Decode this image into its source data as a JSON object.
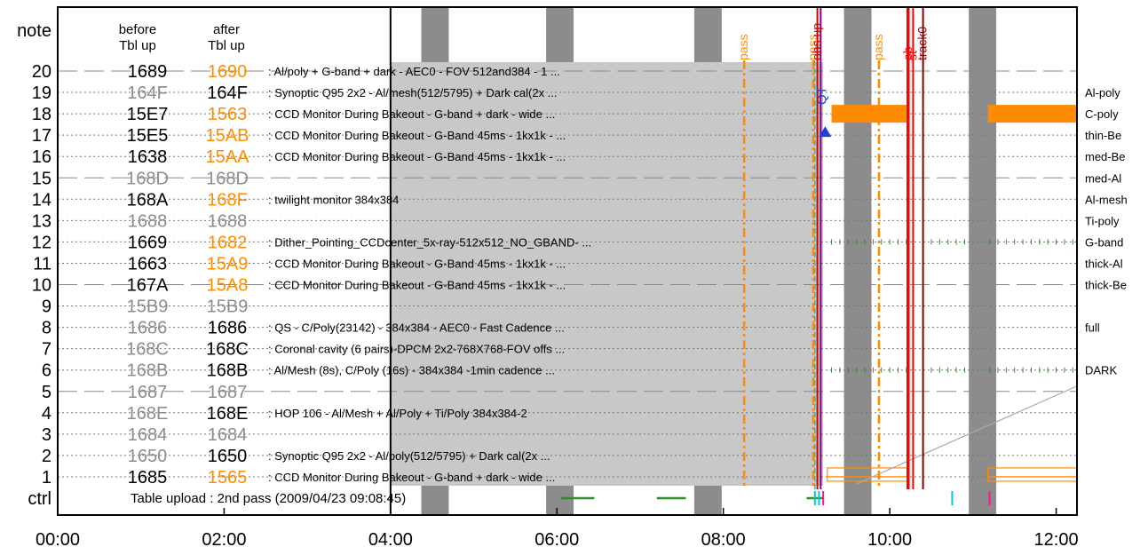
{
  "chart_data": {
    "type": "timeline",
    "x_ticks": [
      "00:00",
      "02:00",
      "04:00",
      "06:00",
      "08:00",
      "10:00",
      "12:00"
    ],
    "x_range_hours": [
      0,
      12.25
    ],
    "row_label_header": "note",
    "ctrl_label": "ctrl",
    "before_header": [
      "before",
      "Tbl up"
    ],
    "after_header": [
      "after",
      "Tbl up"
    ],
    "table_boundary_hour": 4.0,
    "rows": [
      {
        "num": "20",
        "before": "1689",
        "after": "1690",
        "before_style": "black",
        "after_style": "orange",
        "desc": "Al/poly + G-band + dark - AEC0 - FOV 512and384 - 1 ...",
        "line": "dashed",
        "right_label": ""
      },
      {
        "num": "19",
        "before": "164F",
        "after": "164F",
        "before_style": "gray",
        "after_style": "black",
        "desc": "Synoptic Q95 2x2 - Al/mesh(512/5795) + Dark cal(2x ...",
        "line": "dotted",
        "right_label": "Al-poly"
      },
      {
        "num": "18",
        "before": "15E7",
        "after": "1563",
        "before_style": "black",
        "after_style": "orange",
        "desc": "CCD Monitor During Bakeout - G-band + dark - wide ...",
        "line": "dotted",
        "right_label": "C-poly"
      },
      {
        "num": "17",
        "before": "15E5",
        "after": "15AB",
        "before_style": "black",
        "after_style": "orange",
        "desc": "CCD Monitor During Bakeout - G-Band 45ms - 1kx1k - ...",
        "line": "dotted",
        "right_label": "thin-Be"
      },
      {
        "num": "16",
        "before": "1638",
        "after": "15AA",
        "before_style": "black",
        "after_style": "orange",
        "desc": "CCD Monitor During Bakeout - G-Band 45ms - 1kx1k - ...",
        "line": "dotted",
        "right_label": "med-Be"
      },
      {
        "num": "15",
        "before": "168D",
        "after": "168D",
        "before_style": "gray",
        "after_style": "gray",
        "desc": "",
        "line": "dashed",
        "right_label": "med-Al"
      },
      {
        "num": "14",
        "before": "168A",
        "after": "168F",
        "before_style": "black",
        "after_style": "orange",
        "desc": "twilight monitor 384x384",
        "line": "dotted",
        "right_label": "Al-mesh"
      },
      {
        "num": "13",
        "before": "1688",
        "after": "1688",
        "before_style": "gray",
        "after_style": "gray",
        "desc": "",
        "line": "dotted",
        "right_label": "Ti-poly"
      },
      {
        "num": "12",
        "before": "1669",
        "after": "1682",
        "before_style": "black",
        "after_style": "orange",
        "desc": "Dither_Pointing_CCDcenter_5x-ray-512x512_NO_GBAND- ...",
        "line": "dotted",
        "right_label": "G-band"
      },
      {
        "num": "11",
        "before": "1663",
        "after": "15A9",
        "before_style": "black",
        "after_style": "orange",
        "desc": "CCD Monitor During Bakeout - G-Band 45ms - 1kx1k - ...",
        "line": "dotted",
        "right_label": "thick-Al"
      },
      {
        "num": "10",
        "before": "167A",
        "after": "15A8",
        "before_style": "black",
        "after_style": "orange",
        "desc": "CCD Monitor During Bakeout - G-Band 45ms - 1kx1k - ...",
        "line": "dashed",
        "right_label": "thick-Be"
      },
      {
        "num": "9",
        "before": "15B9",
        "after": "15B9",
        "before_style": "gray",
        "after_style": "gray",
        "desc": "",
        "line": "dotted",
        "right_label": ""
      },
      {
        "num": "8",
        "before": "1686",
        "after": "1686",
        "before_style": "gray",
        "after_style": "black",
        "desc": "QS - C/Poly(23142) - 384x384 - AEC0 - Fast Cadence ...",
        "line": "dotted",
        "right_label": "full"
      },
      {
        "num": "7",
        "before": "168C",
        "after": "168C",
        "before_style": "gray",
        "after_style": "black",
        "desc": "Coronal cavity (6 pairs)-DPCM 2x2-768X768-FOV offs ...",
        "line": "dotted",
        "right_label": ""
      },
      {
        "num": "6",
        "before": "168B",
        "after": "168B",
        "before_style": "gray",
        "after_style": "black",
        "desc": "Al/Mesh (8s), C/Poly (16s) - 384x384 -1min cadence ...",
        "line": "dotted",
        "right_label": "DARK"
      },
      {
        "num": "5",
        "before": "1687",
        "after": "1687",
        "before_style": "gray",
        "after_style": "gray",
        "desc": "",
        "line": "dashed",
        "right_label": ""
      },
      {
        "num": "4",
        "before": "168E",
        "after": "168E",
        "before_style": "gray",
        "after_style": "black",
        "desc": "HOP 106 - Al/Mesh + Al/Poly + Ti/Poly 384x384-2",
        "line": "dotted",
        "right_label": ""
      },
      {
        "num": "3",
        "before": "1684",
        "after": "1684",
        "before_style": "gray",
        "after_style": "gray",
        "desc": "",
        "line": "dotted",
        "right_label": ""
      },
      {
        "num": "2",
        "before": "1650",
        "after": "1650",
        "before_style": "gray",
        "after_style": "black",
        "desc": "Synoptic Q95 2x2 - Al/poly(512/5795) + Dark cal(2x ...",
        "line": "dotted",
        "right_label": ""
      },
      {
        "num": "1",
        "before": "1685",
        "after": "1565",
        "before_style": "black",
        "after_style": "orange",
        "desc": "CCD Monitor During Bakeout - G-band + dark - wide ...",
        "line": "dotted",
        "right_label": ""
      }
    ],
    "ctrl_text": "Table upload : 2nd pass (2009/04/23 09:08:45)",
    "shaded_region_hours": [
      4.0,
      9.2
    ],
    "gray_bands_hours": [
      [
        4.37,
        4.7
      ],
      [
        5.87,
        6.2
      ],
      [
        7.65,
        7.98
      ],
      [
        9.45,
        9.78
      ],
      [
        10.95,
        11.28
      ]
    ],
    "passes": [
      {
        "label": "pass",
        "hour": 8.25,
        "color": "#ff8c00"
      },
      {
        "label": "pass",
        "hour": 9.08,
        "color": "#ff8c00"
      },
      {
        "label": "pass",
        "hour": 9.87,
        "color": "#ff8c00"
      }
    ],
    "vertical_markers": [
      {
        "label": "obs up",
        "hour": 9.13,
        "color": "#cc0000"
      },
      {
        "label": "",
        "hour": 9.17,
        "color": "#800080"
      },
      {
        "label": "ob",
        "hour": 10.22,
        "color": "#ff0000"
      },
      {
        "label": "st",
        "hour": 10.28,
        "color": "#ff0000"
      },
      {
        "label": "track0",
        "hour": 10.4,
        "color": "#8b0000"
      }
    ],
    "cyan_marker_hour": 9.1,
    "qt_label": "QT",
    "qt_hour": 9.17,
    "orange_bars": [
      {
        "row": "18",
        "start": 9.3,
        "end": 10.22
      },
      {
        "row": "18",
        "start": 11.18,
        "end": 12.25
      }
    ],
    "orange_outline_bars": [
      {
        "row": "1",
        "start": 9.25,
        "end": 10.22
      },
      {
        "row": "1",
        "start": 11.18,
        "end": 12.25
      }
    ],
    "green_tick_rows": [
      "12",
      "6"
    ],
    "green_tick_segments": [
      [
        9.3,
        10.2
      ],
      [
        10.4,
        10.9
      ],
      [
        11.2,
        12.2
      ]
    ],
    "ctrl_green_segments": [
      [
        6.05,
        6.45
      ],
      [
        7.2,
        7.55
      ],
      [
        9.0,
        9.2
      ]
    ],
    "ctrl_marker_cyan": [
      9.1,
      9.15,
      10.75
    ],
    "ctrl_marker_magenta": [
      9.2,
      11.2
    ]
  }
}
